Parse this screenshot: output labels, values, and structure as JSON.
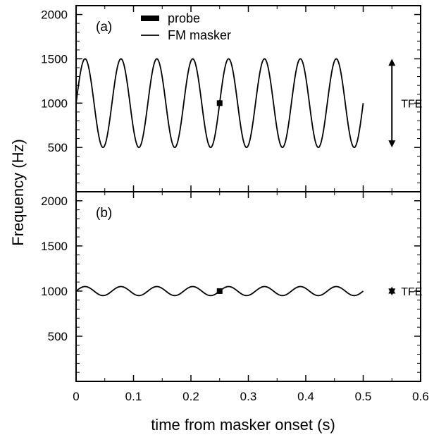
{
  "chart_data": [
    {
      "type": "line",
      "panel_label": "(a)",
      "xlabel": "time from masker onset (s)",
      "ylabel": "Frequency (Hz)",
      "xlim": [
        0,
        0.6
      ],
      "ylim": [
        0,
        2100
      ],
      "x_ticks": [
        0,
        0.1,
        0.2,
        0.3,
        0.4,
        0.5,
        0.6
      ],
      "x_tick_labels": [
        "0",
        "0.1",
        "0.2",
        "0.3",
        "0.4",
        "0.5",
        "0.6"
      ],
      "y_ticks": [
        500,
        1000,
        1500,
        2000
      ],
      "y_tick_labels": [
        "500",
        "1000",
        "1500",
        "2000"
      ],
      "legend": [
        {
          "label": "probe",
          "marker": "thick-bar"
        },
        {
          "label": "FM masker",
          "marker": "line"
        }
      ],
      "legend_position": "top-left",
      "series": [
        {
          "name": "FM masker",
          "shape": "sinusoid",
          "center_hz": 1000,
          "depth_hz": 500,
          "rate_hz": 16,
          "x_start": 0,
          "x_end": 0.5
        },
        {
          "name": "probe",
          "x": [
            0.25
          ],
          "y": [
            1000
          ]
        }
      ],
      "annotations": [
        {
          "text": "TFE",
          "type": "double-arrow",
          "x": 0.55,
          "from": 500,
          "to": 1500
        }
      ],
      "grid": false
    },
    {
      "type": "line",
      "panel_label": "(b)",
      "xlabel": "time from masker onset (s)",
      "ylabel": "Frequency (Hz)",
      "xlim": [
        0,
        0.6
      ],
      "ylim": [
        0,
        2100
      ],
      "x_ticks": [
        0,
        0.1,
        0.2,
        0.3,
        0.4,
        0.5,
        0.6
      ],
      "x_tick_labels": [
        "0",
        "0.1",
        "0.2",
        "0.3",
        "0.4",
        "0.5",
        "0.6"
      ],
      "y_ticks": [
        500,
        1000,
        1500,
        2000
      ],
      "y_tick_labels": [
        "500",
        "1000",
        "1500",
        "2000"
      ],
      "series": [
        {
          "name": "FM masker",
          "shape": "sinusoid",
          "center_hz": 1000,
          "depth_hz": 50,
          "rate_hz": 16,
          "x_start": 0,
          "x_end": 0.5
        },
        {
          "name": "probe",
          "x": [
            0.25
          ],
          "y": [
            1000
          ]
        }
      ],
      "annotations": [
        {
          "text": "TFE",
          "type": "double-arrow",
          "x": 0.55,
          "from": 950,
          "to": 1050
        }
      ],
      "grid": false
    }
  ],
  "figure": {
    "ylabel": "Frequency (Hz)",
    "xlabel": "time from masker onset (s)",
    "color": "#000000"
  }
}
